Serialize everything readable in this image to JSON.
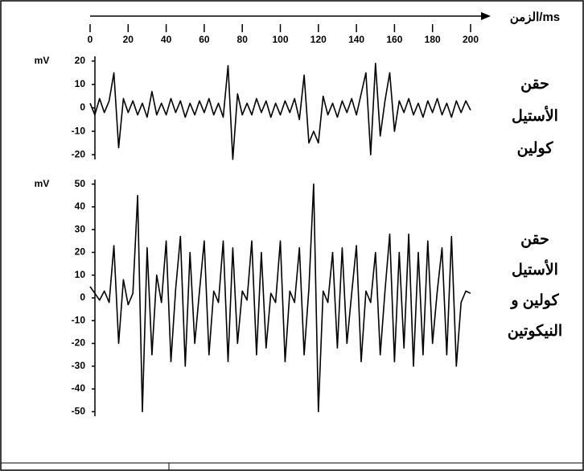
{
  "chart_data": [
    {
      "type": "line",
      "xlabel": "الزمن/ms",
      "ylabel": "mV",
      "label_lines": [
        "حقن",
        "الأستيل",
        "كولين"
      ],
      "xlim": [
        0,
        200
      ],
      "xticks": [
        0,
        20,
        40,
        60,
        80,
        100,
        120,
        140,
        160,
        180,
        200
      ],
      "ylim": [
        -22,
        22
      ],
      "yticks": [
        20,
        10,
        0,
        -10,
        -20
      ],
      "x": [
        0,
        2.5,
        5,
        7.5,
        10,
        12.5,
        15,
        17.5,
        20,
        22.5,
        25,
        27.5,
        30,
        32.5,
        35,
        37.5,
        40,
        42.5,
        45,
        47.5,
        50,
        52.5,
        55,
        57.5,
        60,
        62.5,
        65,
        67.5,
        70,
        72.5,
        75,
        77.5,
        80,
        82.5,
        85,
        87.5,
        90,
        92.5,
        95,
        97.5,
        100,
        102.5,
        105,
        107.5,
        110,
        112.5,
        115,
        117.5,
        120,
        122.5,
        125,
        127.5,
        130,
        132.5,
        135,
        137.5,
        140,
        142.5,
        145,
        147.5,
        150,
        152.5,
        155,
        157.5,
        160,
        162.5,
        165,
        167.5,
        170,
        172.5,
        175,
        177.5,
        180,
        182.5,
        185,
        187.5,
        190,
        192.5,
        195,
        197.5,
        200
      ],
      "series": [
        {
          "color": "#000000",
          "values": [
            2,
            -3,
            4,
            -2,
            3,
            15,
            -17,
            4,
            -2,
            3,
            -3,
            2,
            -4,
            7,
            -3,
            2,
            -3,
            4,
            -2,
            3,
            -4,
            2,
            -3,
            3,
            -2,
            4,
            -3,
            2,
            -4,
            18,
            -22,
            6,
            -3,
            2,
            -3,
            4,
            -2,
            3,
            -4,
            2,
            -3,
            3,
            -2,
            4,
            -5,
            14,
            -15,
            -10,
            -15,
            5,
            -3,
            2,
            -4,
            3,
            -2,
            4,
            -3,
            6,
            15,
            -20,
            19,
            -12,
            3,
            15,
            -10,
            3,
            -2,
            4,
            -3,
            2,
            -4,
            3,
            -2,
            4,
            -3,
            2,
            -4,
            3,
            -2,
            3,
            -1
          ]
        }
      ]
    },
    {
      "type": "line",
      "ylabel": "mV",
      "label_lines": [
        "حقن",
        "الأستيل",
        "كولين و",
        "النيكوتين"
      ],
      "xlim": [
        0,
        200
      ],
      "ylim": [
        -52,
        52
      ],
      "yticks": [
        50,
        40,
        30,
        20,
        10,
        0,
        -10,
        -20,
        -30,
        -40,
        -50
      ],
      "x": [
        0,
        2.5,
        5,
        7.5,
        10,
        12.5,
        15,
        17.5,
        20,
        22.5,
        25,
        27.5,
        30,
        32.5,
        35,
        37.5,
        40,
        42.5,
        45,
        47.5,
        50,
        52.5,
        55,
        57.5,
        60,
        62.5,
        65,
        67.5,
        70,
        72.5,
        75,
        77.5,
        80,
        82.5,
        85,
        87.5,
        90,
        92.5,
        95,
        97.5,
        100,
        102.5,
        105,
        107.5,
        110,
        112.5,
        115,
        117.5,
        120,
        122.5,
        125,
        127.5,
        130,
        132.5,
        135,
        137.5,
        140,
        142.5,
        145,
        147.5,
        150,
        152.5,
        155,
        157.5,
        160,
        162.5,
        165,
        167.5,
        170,
        172.5,
        175,
        177.5,
        180,
        182.5,
        185,
        187.5,
        190,
        192.5,
        195,
        197.5,
        200
      ],
      "series": [
        {
          "color": "#000000",
          "values": [
            5,
            2,
            -1,
            3,
            -2,
            23,
            -20,
            8,
            -3,
            2,
            45,
            -50,
            22,
            -25,
            10,
            -2,
            25,
            -28,
            4,
            27,
            -30,
            20,
            -20,
            3,
            25,
            -25,
            3,
            -2,
            25,
            -28,
            22,
            -20,
            3,
            -1,
            25,
            -25,
            20,
            -22,
            2,
            -2,
            25,
            -28,
            3,
            -2,
            22,
            -25,
            4,
            50,
            -50,
            3,
            -2,
            20,
            -22,
            22,
            -20,
            2,
            23,
            -28,
            3,
            -2,
            20,
            -25,
            3,
            28,
            -28,
            20,
            -22,
            28,
            -30,
            20,
            -25,
            25,
            -20,
            3,
            22,
            -25,
            27,
            -30,
            -2,
            3,
            2
          ]
        }
      ]
    }
  ]
}
